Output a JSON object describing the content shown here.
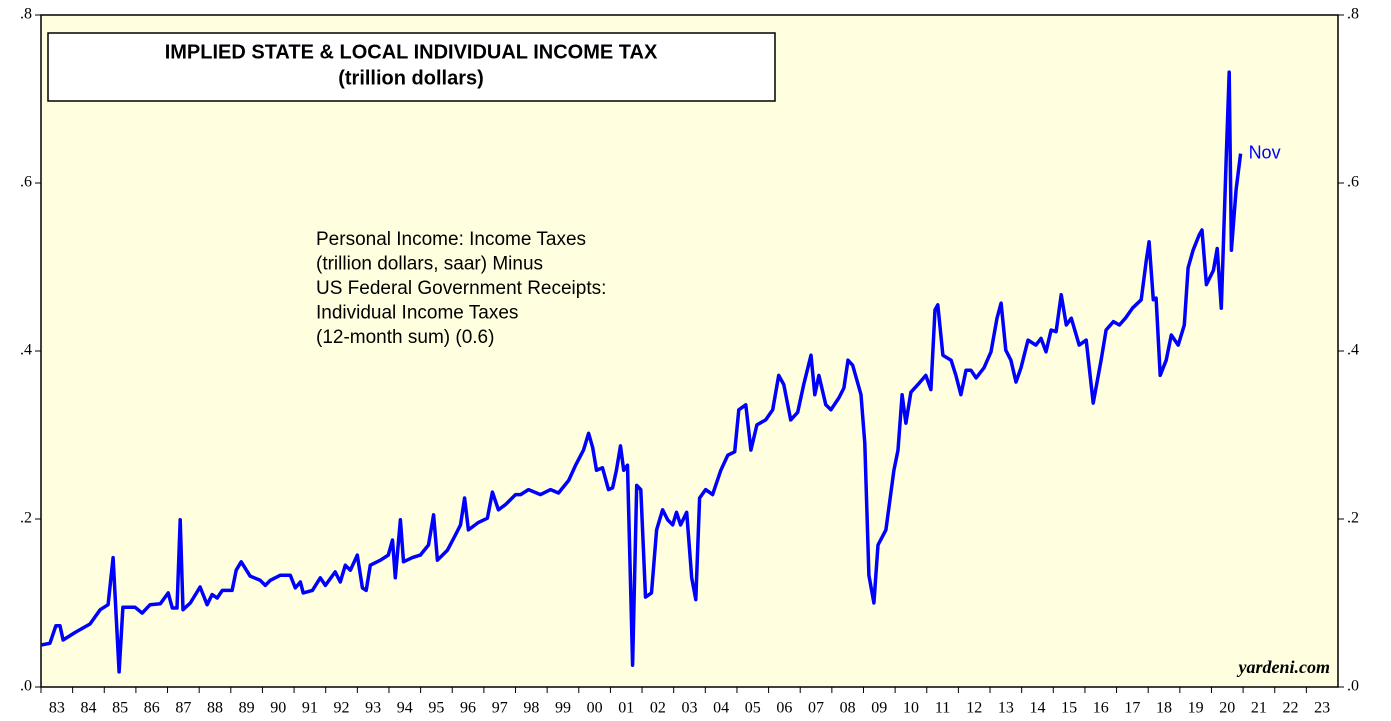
{
  "chart_data": {
    "type": "line",
    "title": "IMPLIED STATE & LOCAL INDIVIDUAL INCOME TAX",
    "subtitle": "(trillion dollars)",
    "note": [
      "Personal Income: Income Taxes",
      "(trillion dollars, saar) Minus",
      "US Federal Government Receipts:",
      "Individual Income Taxes",
      "(12-month sum) (0.6)"
    ],
    "end_label": "Nov",
    "source": "yardeni.com",
    "color": "#0000ff",
    "xlim": [
      1983,
      2024
    ],
    "ylim": [
      0,
      0.8
    ],
    "yticks": [
      {
        "value": 0,
        "label": ".0"
      },
      {
        "value": 0.2,
        "label": ".2"
      },
      {
        "value": 0.4,
        "label": ".4"
      },
      {
        "value": 0.6,
        "label": ".6"
      },
      {
        "value": 0.8,
        "label": ".8"
      }
    ],
    "xticks": [
      {
        "value": 1983,
        "label": "83"
      },
      {
        "value": 1984,
        "label": "84"
      },
      {
        "value": 1985,
        "label": "85"
      },
      {
        "value": 1986,
        "label": "86"
      },
      {
        "value": 1987,
        "label": "87"
      },
      {
        "value": 1988,
        "label": "88"
      },
      {
        "value": 1989,
        "label": "89"
      },
      {
        "value": 1990,
        "label": "90"
      },
      {
        "value": 1991,
        "label": "91"
      },
      {
        "value": 1992,
        "label": "92"
      },
      {
        "value": 1993,
        "label": "93"
      },
      {
        "value": 1994,
        "label": "94"
      },
      {
        "value": 1995,
        "label": "95"
      },
      {
        "value": 1996,
        "label": "96"
      },
      {
        "value": 1997,
        "label": "97"
      },
      {
        "value": 1998,
        "label": "98"
      },
      {
        "value": 1999,
        "label": "99"
      },
      {
        "value": 2000,
        "label": "00"
      },
      {
        "value": 2001,
        "label": "01"
      },
      {
        "value": 2002,
        "label": "02"
      },
      {
        "value": 2003,
        "label": "03"
      },
      {
        "value": 2004,
        "label": "04"
      },
      {
        "value": 2005,
        "label": "05"
      },
      {
        "value": 2006,
        "label": "06"
      },
      {
        "value": 2007,
        "label": "07"
      },
      {
        "value": 2008,
        "label": "08"
      },
      {
        "value": 2009,
        "label": "09"
      },
      {
        "value": 2010,
        "label": "10"
      },
      {
        "value": 2011,
        "label": "11"
      },
      {
        "value": 2012,
        "label": "12"
      },
      {
        "value": 2013,
        "label": "13"
      },
      {
        "value": 2014,
        "label": "14"
      },
      {
        "value": 2015,
        "label": "15"
      },
      {
        "value": 2016,
        "label": "16"
      },
      {
        "value": 2017,
        "label": "17"
      },
      {
        "value": 2018,
        "label": "18"
      },
      {
        "value": 2019,
        "label": "19"
      },
      {
        "value": 2020,
        "label": "20"
      },
      {
        "value": 2021,
        "label": "21"
      },
      {
        "value": 2022,
        "label": "22"
      },
      {
        "value": 2023,
        "label": "23"
      }
    ],
    "x": [
      1983.0,
      1983.28,
      1983.47,
      1983.6,
      1983.7,
      1984.08,
      1984.55,
      1984.87,
      1985.12,
      1985.28,
      1985.47,
      1985.59,
      1985.97,
      1986.2,
      1986.45,
      1986.77,
      1987.02,
      1987.15,
      1987.3,
      1987.4,
      1987.49,
      1987.72,
      1988.03,
      1988.25,
      1988.41,
      1988.57,
      1988.73,
      1989.04,
      1989.17,
      1989.33,
      1989.61,
      1989.93,
      1990.09,
      1990.25,
      1990.56,
      1990.88,
      1991.04,
      1991.2,
      1991.29,
      1991.58,
      1991.83,
      1991.99,
      1992.3,
      1992.46,
      1992.62,
      1992.78,
      1993.0,
      1993.16,
      1993.28,
      1993.41,
      1993.73,
      1993.98,
      1994.11,
      1994.2,
      1994.36,
      1994.46,
      1994.74,
      1994.99,
      1995.25,
      1995.41,
      1995.53,
      1995.85,
      1996.1,
      1996.26,
      1996.39,
      1996.51,
      1996.83,
      1997.11,
      1997.27,
      1997.46,
      1997.68,
      1998.0,
      1998.16,
      1998.41,
      1998.79,
      1999.11,
      1999.36,
      1999.68,
      1999.9,
      2000.15,
      2000.31,
      2000.44,
      2000.56,
      2000.75,
      2000.94,
      2001.07,
      2001.19,
      2001.32,
      2001.42,
      2001.54,
      2001.7,
      2001.83,
      2001.96,
      2002.11,
      2002.3,
      2002.46,
      2002.65,
      2002.81,
      2002.97,
      2003.09,
      2003.22,
      2003.41,
      2003.57,
      2003.7,
      2003.82,
      2004.01,
      2004.23,
      2004.49,
      2004.71,
      2004.93,
      2005.06,
      2005.28,
      2005.44,
      2005.63,
      2005.91,
      2006.13,
      2006.32,
      2006.48,
      2006.7,
      2006.92,
      2007.11,
      2007.34,
      2007.46,
      2007.59,
      2007.81,
      2007.97,
      2008.22,
      2008.38,
      2008.51,
      2008.66,
      2008.92,
      2009.04,
      2009.17,
      2009.33,
      2009.46,
      2009.71,
      2009.96,
      2010.09,
      2010.22,
      2010.34,
      2010.5,
      2010.72,
      2010.97,
      2011.13,
      2011.26,
      2011.35,
      2011.51,
      2011.77,
      2011.92,
      2012.08,
      2012.24,
      2012.4,
      2012.56,
      2012.81,
      2013.03,
      2013.22,
      2013.35,
      2013.5,
      2013.66,
      2013.82,
      2013.98,
      2014.2,
      2014.45,
      2014.61,
      2014.77,
      2014.93,
      2015.09,
      2015.25,
      2015.41,
      2015.57,
      2015.82,
      2016.04,
      2016.26,
      2016.51,
      2016.67,
      2016.9,
      2017.09,
      2017.28,
      2017.5,
      2017.78,
      2017.94,
      2018.03,
      2018.16,
      2018.25,
      2018.38,
      2018.57,
      2018.73,
      2018.95,
      2019.14,
      2019.26,
      2019.42,
      2019.61,
      2019.7,
      2019.84,
      2020.06,
      2020.18,
      2020.31,
      2020.47,
      2020.56,
      2020.63,
      2020.78,
      2020.92
    ],
    "values": [
      0.05,
      0.052,
      0.073,
      0.073,
      0.056,
      0.065,
      0.075,
      0.092,
      0.098,
      0.154,
      0.018,
      0.095,
      0.095,
      0.088,
      0.098,
      0.099,
      0.112,
      0.094,
      0.094,
      0.199,
      0.092,
      0.1,
      0.119,
      0.098,
      0.11,
      0.106,
      0.115,
      0.115,
      0.139,
      0.149,
      0.132,
      0.127,
      0.121,
      0.127,
      0.133,
      0.133,
      0.118,
      0.125,
      0.112,
      0.115,
      0.13,
      0.121,
      0.137,
      0.125,
      0.145,
      0.139,
      0.157,
      0.118,
      0.115,
      0.145,
      0.151,
      0.157,
      0.175,
      0.13,
      0.199,
      0.149,
      0.154,
      0.157,
      0.169,
      0.205,
      0.151,
      0.163,
      0.181,
      0.193,
      0.225,
      0.187,
      0.196,
      0.201,
      0.232,
      0.211,
      0.217,
      0.229,
      0.229,
      0.235,
      0.229,
      0.235,
      0.231,
      0.246,
      0.264,
      0.282,
      0.302,
      0.285,
      0.258,
      0.261,
      0.235,
      0.237,
      0.258,
      0.287,
      0.258,
      0.264,
      0.026,
      0.24,
      0.235,
      0.107,
      0.112,
      0.187,
      0.211,
      0.199,
      0.193,
      0.208,
      0.193,
      0.208,
      0.13,
      0.104,
      0.225,
      0.235,
      0.229,
      0.258,
      0.276,
      0.28,
      0.33,
      0.336,
      0.282,
      0.312,
      0.318,
      0.33,
      0.371,
      0.36,
      0.318,
      0.327,
      0.36,
      0.395,
      0.348,
      0.371,
      0.336,
      0.33,
      0.344,
      0.356,
      0.389,
      0.383,
      0.348,
      0.29,
      0.133,
      0.1,
      0.169,
      0.187,
      0.258,
      0.282,
      0.348,
      0.314,
      0.351,
      0.36,
      0.371,
      0.354,
      0.449,
      0.455,
      0.395,
      0.389,
      0.371,
      0.348,
      0.377,
      0.377,
      0.368,
      0.38,
      0.399,
      0.439,
      0.457,
      0.401,
      0.389,
      0.363,
      0.38,
      0.413,
      0.407,
      0.415,
      0.399,
      0.425,
      0.423,
      0.467,
      0.431,
      0.439,
      0.407,
      0.413,
      0.338,
      0.389,
      0.425,
      0.435,
      0.431,
      0.439,
      0.451,
      0.461,
      0.508,
      0.53,
      0.461,
      0.463,
      0.371,
      0.389,
      0.419,
      0.407,
      0.431,
      0.499,
      0.52,
      0.538,
      0.544,
      0.479,
      0.496,
      0.522,
      0.451,
      0.633,
      0.732,
      0.52,
      0.592,
      0.635
    ]
  }
}
